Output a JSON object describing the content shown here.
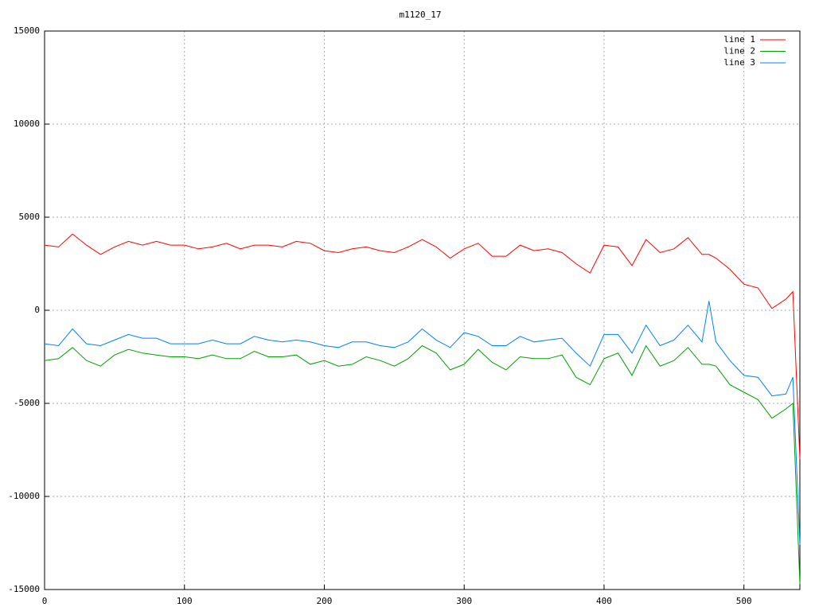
{
  "chart_data": {
    "type": "line",
    "title": "m1120_17",
    "x": [
      0,
      10,
      20,
      30,
      40,
      50,
      60,
      70,
      80,
      90,
      100,
      110,
      120,
      130,
      140,
      150,
      160,
      170,
      180,
      190,
      200,
      210,
      220,
      230,
      240,
      250,
      260,
      270,
      280,
      290,
      300,
      310,
      320,
      330,
      340,
      350,
      360,
      370,
      380,
      390,
      400,
      410,
      420,
      430,
      440,
      450,
      460,
      470,
      475,
      480,
      490,
      500,
      510,
      520,
      530,
      535,
      540
    ],
    "series": [
      {
        "name": "line 1",
        "color": "#ff0000",
        "values": [
          3500,
          3400,
          4100,
          3500,
          3000,
          3400,
          3700,
          3500,
          3700,
          3500,
          3500,
          3300,
          3400,
          3600,
          3300,
          3500,
          3500,
          3400,
          3700,
          3600,
          3200,
          3100,
          3300,
          3400,
          3200,
          3100,
          3400,
          3800,
          3400,
          2800,
          3300,
          3600,
          2900,
          2900,
          3500,
          3200,
          3300,
          3100,
          2500,
          2000,
          3500,
          3400,
          2400,
          3800,
          3100,
          3300,
          3900,
          3000,
          3000,
          2800,
          2200,
          1400,
          1200,
          100,
          600,
          1000,
          -8000
        ]
      },
      {
        "name": "line 2",
        "color": "#00a000",
        "values": [
          -2700,
          -2600,
          -2000,
          -2700,
          -3000,
          -2400,
          -2100,
          -2300,
          -2400,
          -2500,
          -2500,
          -2600,
          -2400,
          -2600,
          -2600,
          -2200,
          -2500,
          -2500,
          -2400,
          -2900,
          -2700,
          -3000,
          -2900,
          -2500,
          -2700,
          -3000,
          -2600,
          -1900,
          -2300,
          -3200,
          -2900,
          -2100,
          -2800,
          -3200,
          -2500,
          -2600,
          -2600,
          -2400,
          -3600,
          -4000,
          -2600,
          -2300,
          -3500,
          -1900,
          -3000,
          -2700,
          -2000,
          -2900,
          -2900,
          -3000,
          -4000,
          -4400,
          -4800,
          -5800,
          -5300,
          -5000,
          -14700
        ]
      },
      {
        "name": "line 3",
        "color": "#0080ff",
        "values": [
          -1800,
          -1900,
          -1000,
          -1800,
          -1900,
          -1600,
          -1300,
          -1500,
          -1500,
          -1800,
          -1800,
          -1800,
          -1600,
          -1800,
          -1800,
          -1400,
          -1600,
          -1700,
          -1600,
          -1700,
          -1900,
          -2000,
          -1700,
          -1700,
          -1900,
          -2000,
          -1700,
          -1000,
          -1600,
          -2000,
          -1200,
          -1400,
          -1900,
          -1900,
          -1400,
          -1700,
          -1600,
          -1500,
          -2300,
          -3000,
          -1300,
          -1300,
          -2300,
          -800,
          -1900,
          -1600,
          -800,
          -1700,
          500,
          -1700,
          -2700,
          -3500,
          -3600,
          -4600,
          -4500,
          -3600,
          -12600
        ]
      }
    ],
    "xlim": [
      0,
      540
    ],
    "xticks": [
      0,
      100,
      200,
      300,
      400,
      500
    ],
    "ylim": [
      -15000,
      15000
    ],
    "yticks": [
      -15000,
      -10000,
      -5000,
      0,
      5000,
      10000,
      15000
    ],
    "grid": true,
    "legend": "top-right"
  }
}
